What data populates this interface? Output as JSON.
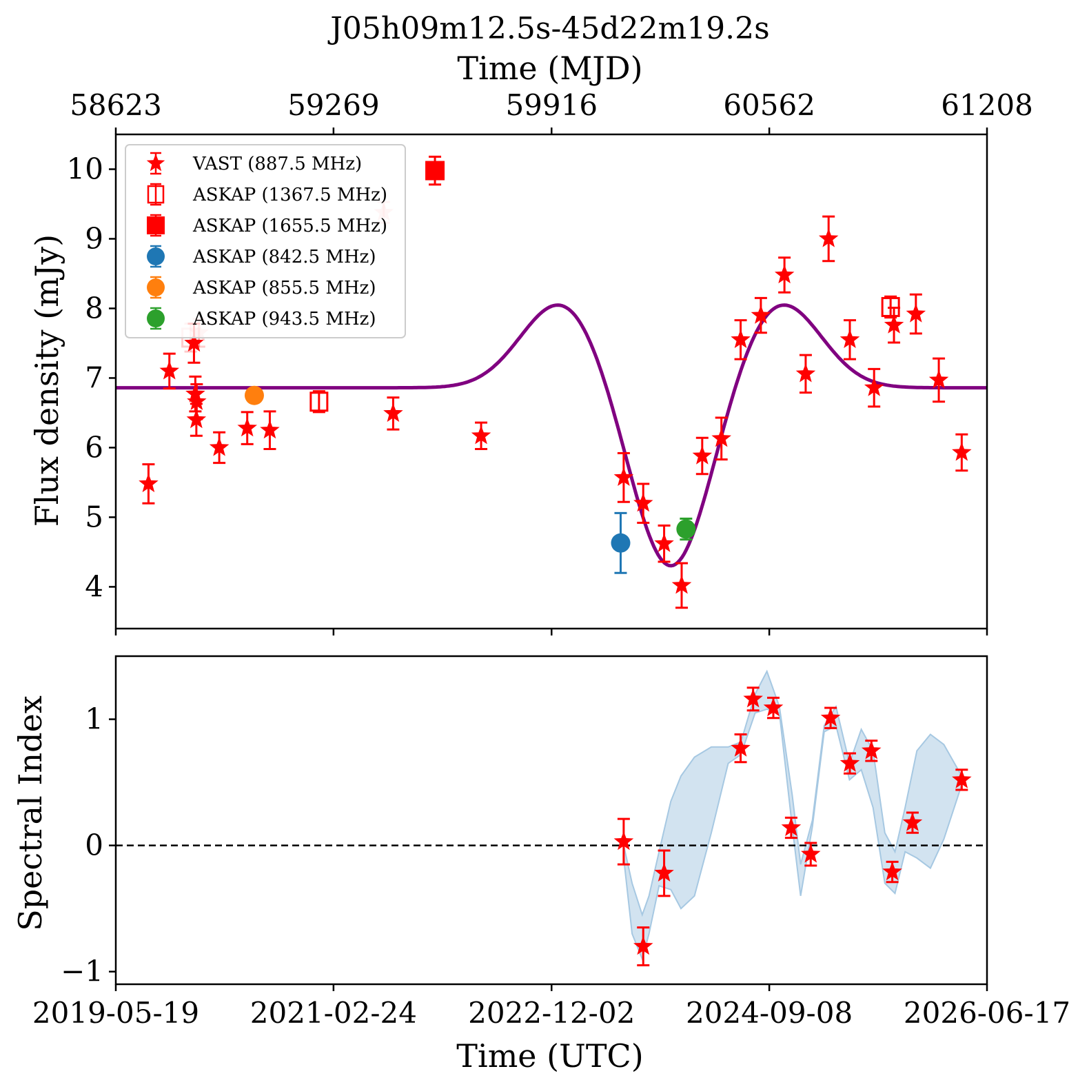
{
  "chart_data": [
    {
      "type": "scatter",
      "panel": "top",
      "title": "J05h09m12.5s-45d22m19.2s",
      "top_axis_label": "Time (MJD)",
      "top_ticks": [
        58623,
        59269,
        59916,
        60562,
        61208
      ],
      "ylabel": "Flux density (mJy)",
      "yticks": [
        4,
        5,
        6,
        7,
        8,
        9,
        10
      ],
      "ylim": [
        3.4,
        10.5
      ],
      "xlim_mjd": [
        58623,
        61208
      ],
      "legend_position": "upper-left",
      "colors": {
        "vast": "#ff0000",
        "askap842": "#1f77b4",
        "askap855": "#ff7f0e",
        "askap943": "#2ca02c",
        "model": "#800080"
      },
      "series": [
        {
          "name": "VAST (887.5 MHz)",
          "marker": "star",
          "color": "#ff0000",
          "points": [
            {
              "x": 58720,
              "y": 5.48,
              "err": 0.28
            },
            {
              "x": 58782,
              "y": 7.1,
              "err": 0.25
            },
            {
              "x": 58855,
              "y": 7.5,
              "err": 0.28
            },
            {
              "x": 58859,
              "y": 6.77,
              "err": 0.25
            },
            {
              "x": 58863,
              "y": 6.66,
              "err": 0.25
            },
            {
              "x": 58862,
              "y": 6.4,
              "err": 0.23
            },
            {
              "x": 58930,
              "y": 6.0,
              "err": 0.22
            },
            {
              "x": 59013,
              "y": 6.28,
              "err": 0.23
            },
            {
              "x": 59080,
              "y": 6.25,
              "err": 0.27
            },
            {
              "x": 59446,
              "y": 6.49,
              "err": 0.23
            },
            {
              "x": 59707,
              "y": 6.17,
              "err": 0.19
            },
            {
              "x": 60130,
              "y": 5.57,
              "err": 0.35
            },
            {
              "x": 60188,
              "y": 5.2,
              "err": 0.28
            },
            {
              "x": 60250,
              "y": 4.62,
              "err": 0.26
            },
            {
              "x": 60302,
              "y": 4.02,
              "err": 0.32
            },
            {
              "x": 60363,
              "y": 5.88,
              "err": 0.26
            },
            {
              "x": 60420,
              "y": 6.13,
              "err": 0.3
            },
            {
              "x": 60477,
              "y": 7.55,
              "err": 0.28
            },
            {
              "x": 60537,
              "y": 7.9,
              "err": 0.25
            },
            {
              "x": 60607,
              "y": 8.48,
              "err": 0.25
            },
            {
              "x": 60670,
              "y": 7.06,
              "err": 0.27
            },
            {
              "x": 60738,
              "y": 9.0,
              "err": 0.32
            },
            {
              "x": 60801,
              "y": 7.55,
              "err": 0.28
            },
            {
              "x": 60873,
              "y": 6.86,
              "err": 0.27
            },
            {
              "x": 60932,
              "y": 7.76,
              "err": 0.25
            },
            {
              "x": 60997,
              "y": 7.92,
              "err": 0.28
            },
            {
              "x": 61065,
              "y": 6.97,
              "err": 0.31
            },
            {
              "x": 61133,
              "y": 5.93,
              "err": 0.26
            }
          ]
        },
        {
          "name": "ASKAP (1367.5 MHz)",
          "marker": "open-square",
          "color": "#ff0000",
          "points": [
            {
              "x": 59226,
              "y": 6.66,
              "err": 0.15
            },
            {
              "x": 60922,
              "y": 8.02,
              "err": 0.15
            }
          ]
        },
        {
          "name": "ASKAP (1655.5 MHz)",
          "marker": "filled-square",
          "color": "#ff0000",
          "points": [
            {
              "x": 59570,
              "y": 9.98,
              "err": 0.2
            }
          ]
        },
        {
          "name": "ASKAP (842.5 MHz)",
          "marker": "circle",
          "color": "#1f77b4",
          "points": [
            {
              "x": 60121,
              "y": 4.63,
              "err": 0.43
            }
          ]
        },
        {
          "name": "ASKAP (855.5 MHz)",
          "marker": "circle",
          "color": "#ff7f0e",
          "points": [
            {
              "x": 59034,
              "y": 6.75,
              "err": 0.08
            }
          ]
        },
        {
          "name": "ASKAP (943.5 MHz)",
          "marker": "circle",
          "color": "#2ca02c",
          "points": [
            {
              "x": 60315,
              "y": 4.83,
              "err": 0.15
            }
          ]
        }
      ],
      "faded_points": [
        {
          "x": 58845,
          "y": 7.58,
          "err": 0.2,
          "marker": "open-square"
        },
        {
          "x": 58870,
          "y": 7.65,
          "err": 0.2,
          "marker": "star"
        },
        {
          "x": 59418,
          "y": 9.38,
          "err": 0.15,
          "marker": "star"
        }
      ],
      "model": {
        "baseline": 6.86,
        "components": [
          {
            "center": 59945,
            "amplitude": 1.23,
            "width": 120
          },
          {
            "center": 60270,
            "amplitude": -2.62,
            "width": 115
          },
          {
            "center": 60595,
            "amplitude": 1.23,
            "width": 120
          }
        ]
      }
    },
    {
      "type": "scatter",
      "panel": "bottom",
      "xlabel": "Time (UTC)",
      "ylabel": "Spectral Index",
      "xticks": [
        "2019-05-19",
        "2021-02-24",
        "2022-12-02",
        "2024-09-08",
        "2026-06-17"
      ],
      "xtick_mjd": [
        58623,
        59269,
        59916,
        60562,
        61208
      ],
      "yticks": [
        -1,
        0,
        1
      ],
      "ytick_labels": [
        "−1",
        "0",
        "1"
      ],
      "ylim": [
        -1.1,
        1.5
      ],
      "reference_line": 0,
      "series": [
        {
          "name": "spectral-index",
          "marker": "star",
          "color": "#ff0000",
          "points": [
            {
              "x": 60130,
              "y": 0.03,
              "err": 0.18
            },
            {
              "x": 60188,
              "y": -0.8,
              "err": 0.15
            },
            {
              "x": 60250,
              "y": -0.22,
              "err": 0.18
            },
            {
              "x": 60477,
              "y": 0.77,
              "err": 0.11
            },
            {
              "x": 60514,
              "y": 1.16,
              "err": 0.09
            },
            {
              "x": 60574,
              "y": 1.09,
              "err": 0.08
            },
            {
              "x": 60627,
              "y": 0.14,
              "err": 0.08
            },
            {
              "x": 60685,
              "y": -0.07,
              "err": 0.09
            },
            {
              "x": 60744,
              "y": 1.01,
              "err": 0.08
            },
            {
              "x": 60801,
              "y": 0.65,
              "err": 0.08
            },
            {
              "x": 60865,
              "y": 0.75,
              "err": 0.08
            },
            {
              "x": 60927,
              "y": -0.21,
              "err": 0.08
            },
            {
              "x": 60987,
              "y": 0.18,
              "err": 0.08
            },
            {
              "x": 61133,
              "y": 0.52,
              "err": 0.08
            }
          ]
        }
      ],
      "band": {
        "color": "#a6c8e2",
        "x": [
          60130,
          60155,
          60185,
          60205,
          60235,
          60270,
          60300,
          60340,
          60390,
          60440,
          60478,
          60520,
          60555,
          60592,
          60630,
          60655,
          60690,
          60725,
          60760,
          60800,
          60835,
          60870,
          60905,
          60935,
          60965,
          61000,
          61040,
          61080,
          61133
        ],
        "upper": [
          0.0,
          -0.3,
          -0.55,
          -0.4,
          -0.05,
          0.35,
          0.55,
          0.7,
          0.78,
          0.78,
          0.82,
          1.2,
          1.38,
          1.1,
          0.4,
          -0.15,
          0.2,
          0.95,
          1.1,
          0.65,
          0.92,
          0.75,
          0.1,
          -0.05,
          0.3,
          0.75,
          0.88,
          0.8,
          0.55
        ],
        "lower": [
          -0.1,
          -0.7,
          -0.9,
          -0.7,
          -0.32,
          -0.35,
          -0.5,
          -0.4,
          0.1,
          0.65,
          0.72,
          1.05,
          1.08,
          1.05,
          0.15,
          -0.4,
          0.15,
          0.9,
          0.95,
          0.52,
          0.6,
          0.3,
          -0.3,
          -0.38,
          -0.05,
          -0.1,
          -0.18,
          0.05,
          0.48
        ]
      }
    }
  ]
}
